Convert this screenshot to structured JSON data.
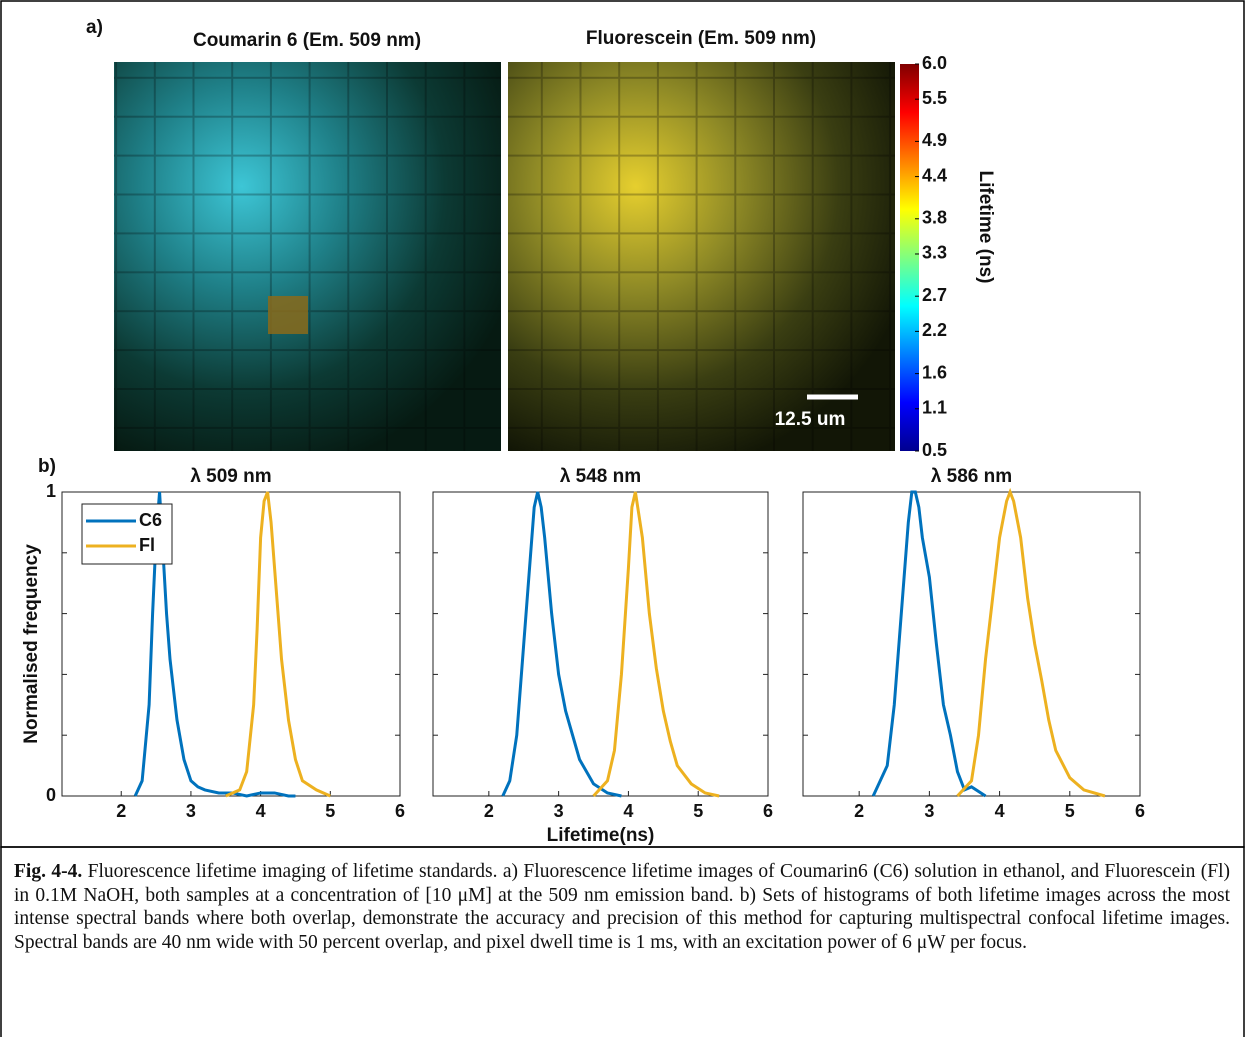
{
  "figure": {
    "panel_a_label": "a)",
    "panel_b_label": "b)"
  },
  "images": [
    {
      "title": "Coumarin 6 (Em. 509 nm)"
    },
    {
      "title": "Fluorescein (Em. 509 nm)"
    }
  ],
  "scale_bar": "12.5 um",
  "colorbar": {
    "label": "Lifetime (ns)",
    "lim": [
      0.5,
      6
    ],
    "ticks": [
      {
        "value": 6,
        "label": "6.0"
      },
      5.5,
      4.9,
      4.4,
      3.8,
      3.3,
      2.7,
      2.2,
      1.6,
      1.1,
      0.5
    ]
  },
  "chart_data": [
    {
      "type": "line",
      "title": "λ 509 nm",
      "ylabel": "Normalised frequency",
      "legend": "upper left",
      "xlim": [
        1.15,
        6
      ],
      "xticks": [
        2,
        3,
        4,
        5,
        6
      ],
      "ylim": [
        0,
        1
      ],
      "yticks": [
        0,
        1
      ],
      "yminorticks": [
        0.2,
        0.4,
        0.6,
        0.8
      ],
      "series": [
        {
          "name": "C6",
          "color": "#0072bd",
          "x": [
            2.2,
            2.3,
            2.4,
            2.45,
            2.5,
            2.55,
            2.6,
            2.65,
            2.7,
            2.8,
            2.9,
            3.0,
            3.1,
            3.2,
            3.4,
            3.6,
            3.8,
            4.0,
            4.2,
            4.4,
            4.5
          ],
          "values": [
            0,
            0.05,
            0.3,
            0.6,
            0.85,
            1,
            0.8,
            0.6,
            0.45,
            0.25,
            0.12,
            0.05,
            0.03,
            0.02,
            0.01,
            0.01,
            0,
            0.01,
            0.01,
            0,
            0
          ]
        },
        {
          "name": "Fl",
          "color": "#edb120",
          "x": [
            3.5,
            3.7,
            3.8,
            3.9,
            3.95,
            4.0,
            4.05,
            4.1,
            4.15,
            4.2,
            4.3,
            4.4,
            4.5,
            4.6,
            4.8,
            5.0
          ],
          "values": [
            0,
            0.02,
            0.08,
            0.3,
            0.55,
            0.85,
            0.97,
            1,
            0.9,
            0.75,
            0.45,
            0.25,
            0.12,
            0.05,
            0.02,
            0
          ]
        }
      ]
    },
    {
      "type": "line",
      "title": "λ 548 nm",
      "xlabel": "Lifetime(ns)",
      "xlim": [
        1.2,
        6
      ],
      "xticks": [
        2,
        3,
        4,
        5,
        6
      ],
      "ylim": [
        0,
        1
      ],
      "yminorticks": [
        0.2,
        0.4,
        0.6,
        0.8
      ],
      "series": [
        {
          "color": "#0072bd",
          "x": [
            2.2,
            2.3,
            2.4,
            2.5,
            2.6,
            2.65,
            2.7,
            2.75,
            2.8,
            2.9,
            3.0,
            3.1,
            3.2,
            3.3,
            3.5,
            3.7,
            3.9
          ],
          "values": [
            0,
            0.05,
            0.2,
            0.5,
            0.8,
            0.95,
            1,
            0.95,
            0.85,
            0.6,
            0.4,
            0.28,
            0.2,
            0.12,
            0.04,
            0.01,
            0
          ]
        },
        {
          "color": "#edb120",
          "x": [
            3.5,
            3.7,
            3.8,
            3.9,
            4.0,
            4.05,
            4.1,
            4.2,
            4.3,
            4.4,
            4.5,
            4.6,
            4.7,
            4.9,
            5.1,
            5.3
          ],
          "values": [
            0,
            0.05,
            0.15,
            0.4,
            0.75,
            0.95,
            1,
            0.85,
            0.6,
            0.42,
            0.28,
            0.18,
            0.1,
            0.04,
            0.01,
            0
          ]
        }
      ]
    },
    {
      "type": "line",
      "title": "λ 586 nm",
      "xlim": [
        1.2,
        6
      ],
      "xticks": [
        2,
        3,
        4,
        5,
        6
      ],
      "ylim": [
        0,
        1
      ],
      "yminorticks": [
        0.2,
        0.4,
        0.6,
        0.8
      ],
      "series": [
        {
          "color": "#0072bd",
          "x": [
            2.2,
            2.4,
            2.5,
            2.6,
            2.7,
            2.75,
            2.8,
            2.85,
            2.9,
            3.0,
            3.1,
            3.2,
            3.3,
            3.4,
            3.5,
            3.6,
            3.8
          ],
          "values": [
            0,
            0.1,
            0.3,
            0.6,
            0.9,
            1,
            1,
            0.95,
            0.85,
            0.72,
            0.5,
            0.3,
            0.2,
            0.08,
            0.02,
            0.03,
            0
          ]
        },
        {
          "color": "#edb120",
          "x": [
            3.4,
            3.6,
            3.7,
            3.8,
            3.9,
            4.0,
            4.1,
            4.15,
            4.2,
            4.3,
            4.4,
            4.5,
            4.6,
            4.7,
            4.8,
            5.0,
            5.2,
            5.5
          ],
          "values": [
            0,
            0.05,
            0.2,
            0.45,
            0.65,
            0.85,
            0.97,
            1,
            0.97,
            0.85,
            0.65,
            0.5,
            0.38,
            0.25,
            0.15,
            0.06,
            0.02,
            0
          ]
        }
      ]
    }
  ],
  "caption": {
    "label": "Fig. 4-4.",
    "text": "Fluorescence lifetime imaging of lifetime standards. a) Fluorescence lifetime images of Coumarin6 (C6) solution in ethanol, and Fluorescein (Fl) in 0.1M NaOH, both samples at a concentration of [10 μM] at the 509 nm emission band. b) Sets of histograms of both lifetime images across the most intense spectral bands where both overlap, demonstrate the accuracy and precision of this method for capturing multispectral confocal lifetime images. Spectral bands are 40 nm wide with 50 percent overlap, and pixel dwell time is 1 ms, with an excitation power of 6 μW per focus."
  }
}
